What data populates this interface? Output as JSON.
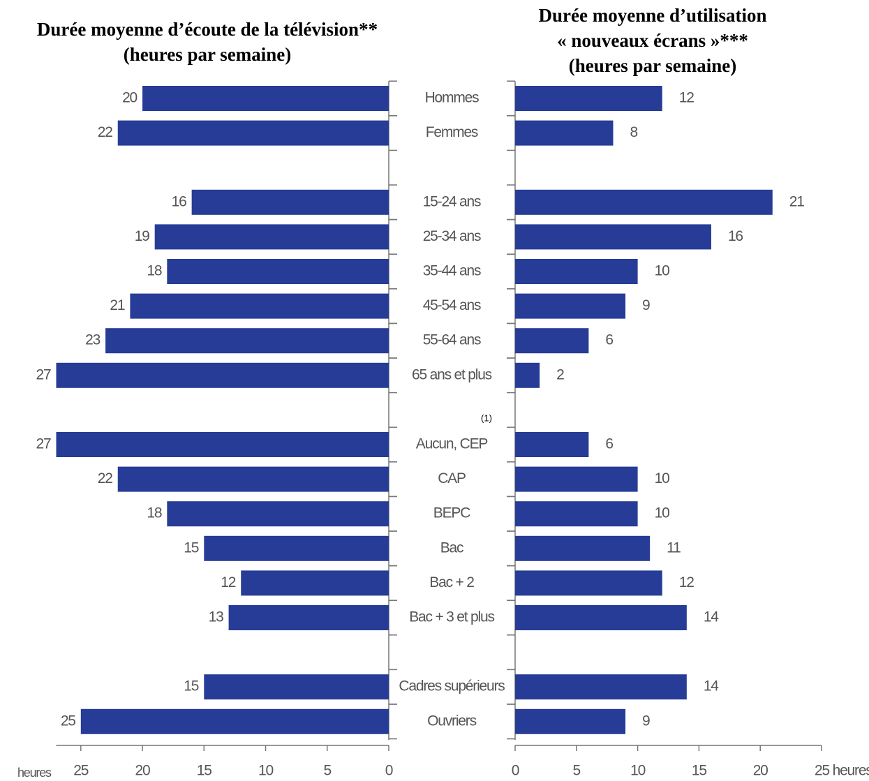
{
  "chart_data": [
    {
      "type": "hbar",
      "title": [
        "Durée moyenne d’écoute de la télévision**",
        "(heures par semaine)"
      ],
      "categories": [
        "Hommes",
        "Femmes",
        null,
        "15-24 ans",
        "25-34 ans",
        "35-44 ans",
        "45-54 ans",
        "55-64 ans",
        "65 ans et plus",
        null,
        "Aucun, CEP",
        "CAP",
        "BEPC",
        "Bac",
        "Bac + 2",
        "Bac + 3 et plus",
        null,
        "Cadres supérieurs",
        "Ouvriers"
      ],
      "values": [
        20,
        22,
        null,
        16,
        19,
        18,
        21,
        23,
        27,
        null,
        27,
        22,
        18,
        15,
        12,
        13,
        null,
        15,
        25
      ],
      "color": "#263c96",
      "xlim": [
        27,
        0
      ],
      "xticks": [
        25,
        20,
        15,
        10,
        5,
        0
      ],
      "xlabel": "heures",
      "annotation": "(1)"
    },
    {
      "type": "hbar",
      "title": [
        "Durée moyenne d’utilisation",
        "« nouveaux écrans »***",
        "(heures par semaine)"
      ],
      "values": [
        12,
        8,
        null,
        21,
        16,
        10,
        9,
        6,
        2,
        null,
        6,
        10,
        10,
        11,
        12,
        14,
        null,
        14,
        9
      ],
      "color": "#263c96",
      "xlim": [
        0,
        25
      ],
      "xticks": [
        0,
        5,
        10,
        15,
        20,
        {
          "value": 25,
          "label": "25 heures"
        }
      ]
    }
  ]
}
